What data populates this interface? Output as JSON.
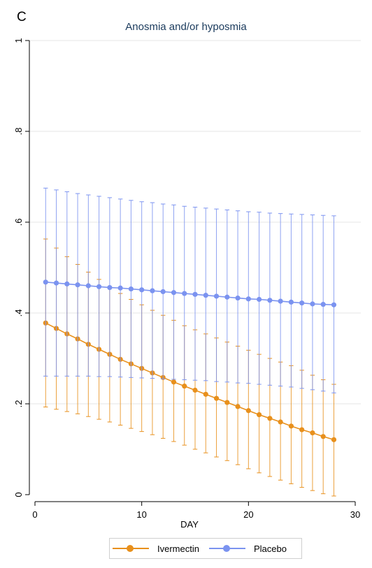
{
  "panel_label": "C",
  "chart_data": {
    "type": "line",
    "title": "Anosmia and/or hyposmia",
    "xlabel": "DAY",
    "ylabel": "",
    "xlim": [
      0,
      30
    ],
    "ylim": [
      0,
      1
    ],
    "xticks": [
      0,
      10,
      20,
      30
    ],
    "yticks": [
      0,
      0.2,
      0.4,
      0.6,
      0.8,
      1
    ],
    "ytick_labels": [
      "0",
      ".2",
      ".4",
      ".6",
      ".8",
      "1"
    ],
    "grid": true,
    "legend_position": "bottom",
    "x": [
      1,
      2,
      3,
      4,
      5,
      6,
      7,
      8,
      9,
      10,
      11,
      12,
      13,
      14,
      15,
      16,
      17,
      18,
      19,
      20,
      21,
      22,
      23,
      24,
      25,
      26,
      27,
      28
    ],
    "series": [
      {
        "name": "Ivermectin",
        "color": "#e8901c",
        "values": [
          0.378,
          0.366,
          0.354,
          0.343,
          0.331,
          0.32,
          0.309,
          0.298,
          0.288,
          0.278,
          0.268,
          0.258,
          0.248,
          0.239,
          0.23,
          0.221,
          0.212,
          0.203,
          0.194,
          0.185,
          0.176,
          0.168,
          0.16,
          0.151,
          0.143,
          0.136,
          0.128,
          0.121
        ],
        "ci_lower": [
          0.193,
          0.188,
          0.183,
          0.178,
          0.172,
          0.166,
          0.16,
          0.153,
          0.146,
          0.139,
          0.132,
          0.124,
          0.117,
          0.109,
          0.1,
          0.092,
          0.083,
          0.075,
          0.066,
          0.057,
          0.048,
          0.04,
          0.032,
          0.024,
          0.016,
          0.009,
          0.002,
          -0.003
        ],
        "ci_upper": [
          0.563,
          0.543,
          0.524,
          0.507,
          0.49,
          0.474,
          0.458,
          0.443,
          0.43,
          0.418,
          0.406,
          0.395,
          0.384,
          0.372,
          0.363,
          0.354,
          0.345,
          0.336,
          0.327,
          0.318,
          0.309,
          0.3,
          0.292,
          0.284,
          0.274,
          0.263,
          0.253,
          0.243
        ]
      },
      {
        "name": "Placebo",
        "color": "#7b93f0",
        "values": [
          0.468,
          0.466,
          0.464,
          0.462,
          0.46,
          0.458,
          0.456,
          0.455,
          0.453,
          0.451,
          0.449,
          0.447,
          0.445,
          0.443,
          0.441,
          0.439,
          0.437,
          0.435,
          0.433,
          0.431,
          0.43,
          0.428,
          0.426,
          0.424,
          0.422,
          0.42,
          0.419,
          0.418
        ],
        "ci_lower": [
          0.261,
          0.261,
          0.261,
          0.261,
          0.261,
          0.26,
          0.26,
          0.259,
          0.258,
          0.257,
          0.256,
          0.255,
          0.254,
          0.253,
          0.252,
          0.251,
          0.249,
          0.248,
          0.246,
          0.245,
          0.243,
          0.241,
          0.239,
          0.237,
          0.234,
          0.231,
          0.228,
          0.224
        ],
        "ci_upper": [
          0.675,
          0.671,
          0.667,
          0.663,
          0.66,
          0.657,
          0.654,
          0.651,
          0.648,
          0.645,
          0.643,
          0.64,
          0.638,
          0.635,
          0.633,
          0.631,
          0.629,
          0.627,
          0.625,
          0.623,
          0.622,
          0.62,
          0.619,
          0.618,
          0.617,
          0.616,
          0.615,
          0.614
        ]
      }
    ]
  }
}
